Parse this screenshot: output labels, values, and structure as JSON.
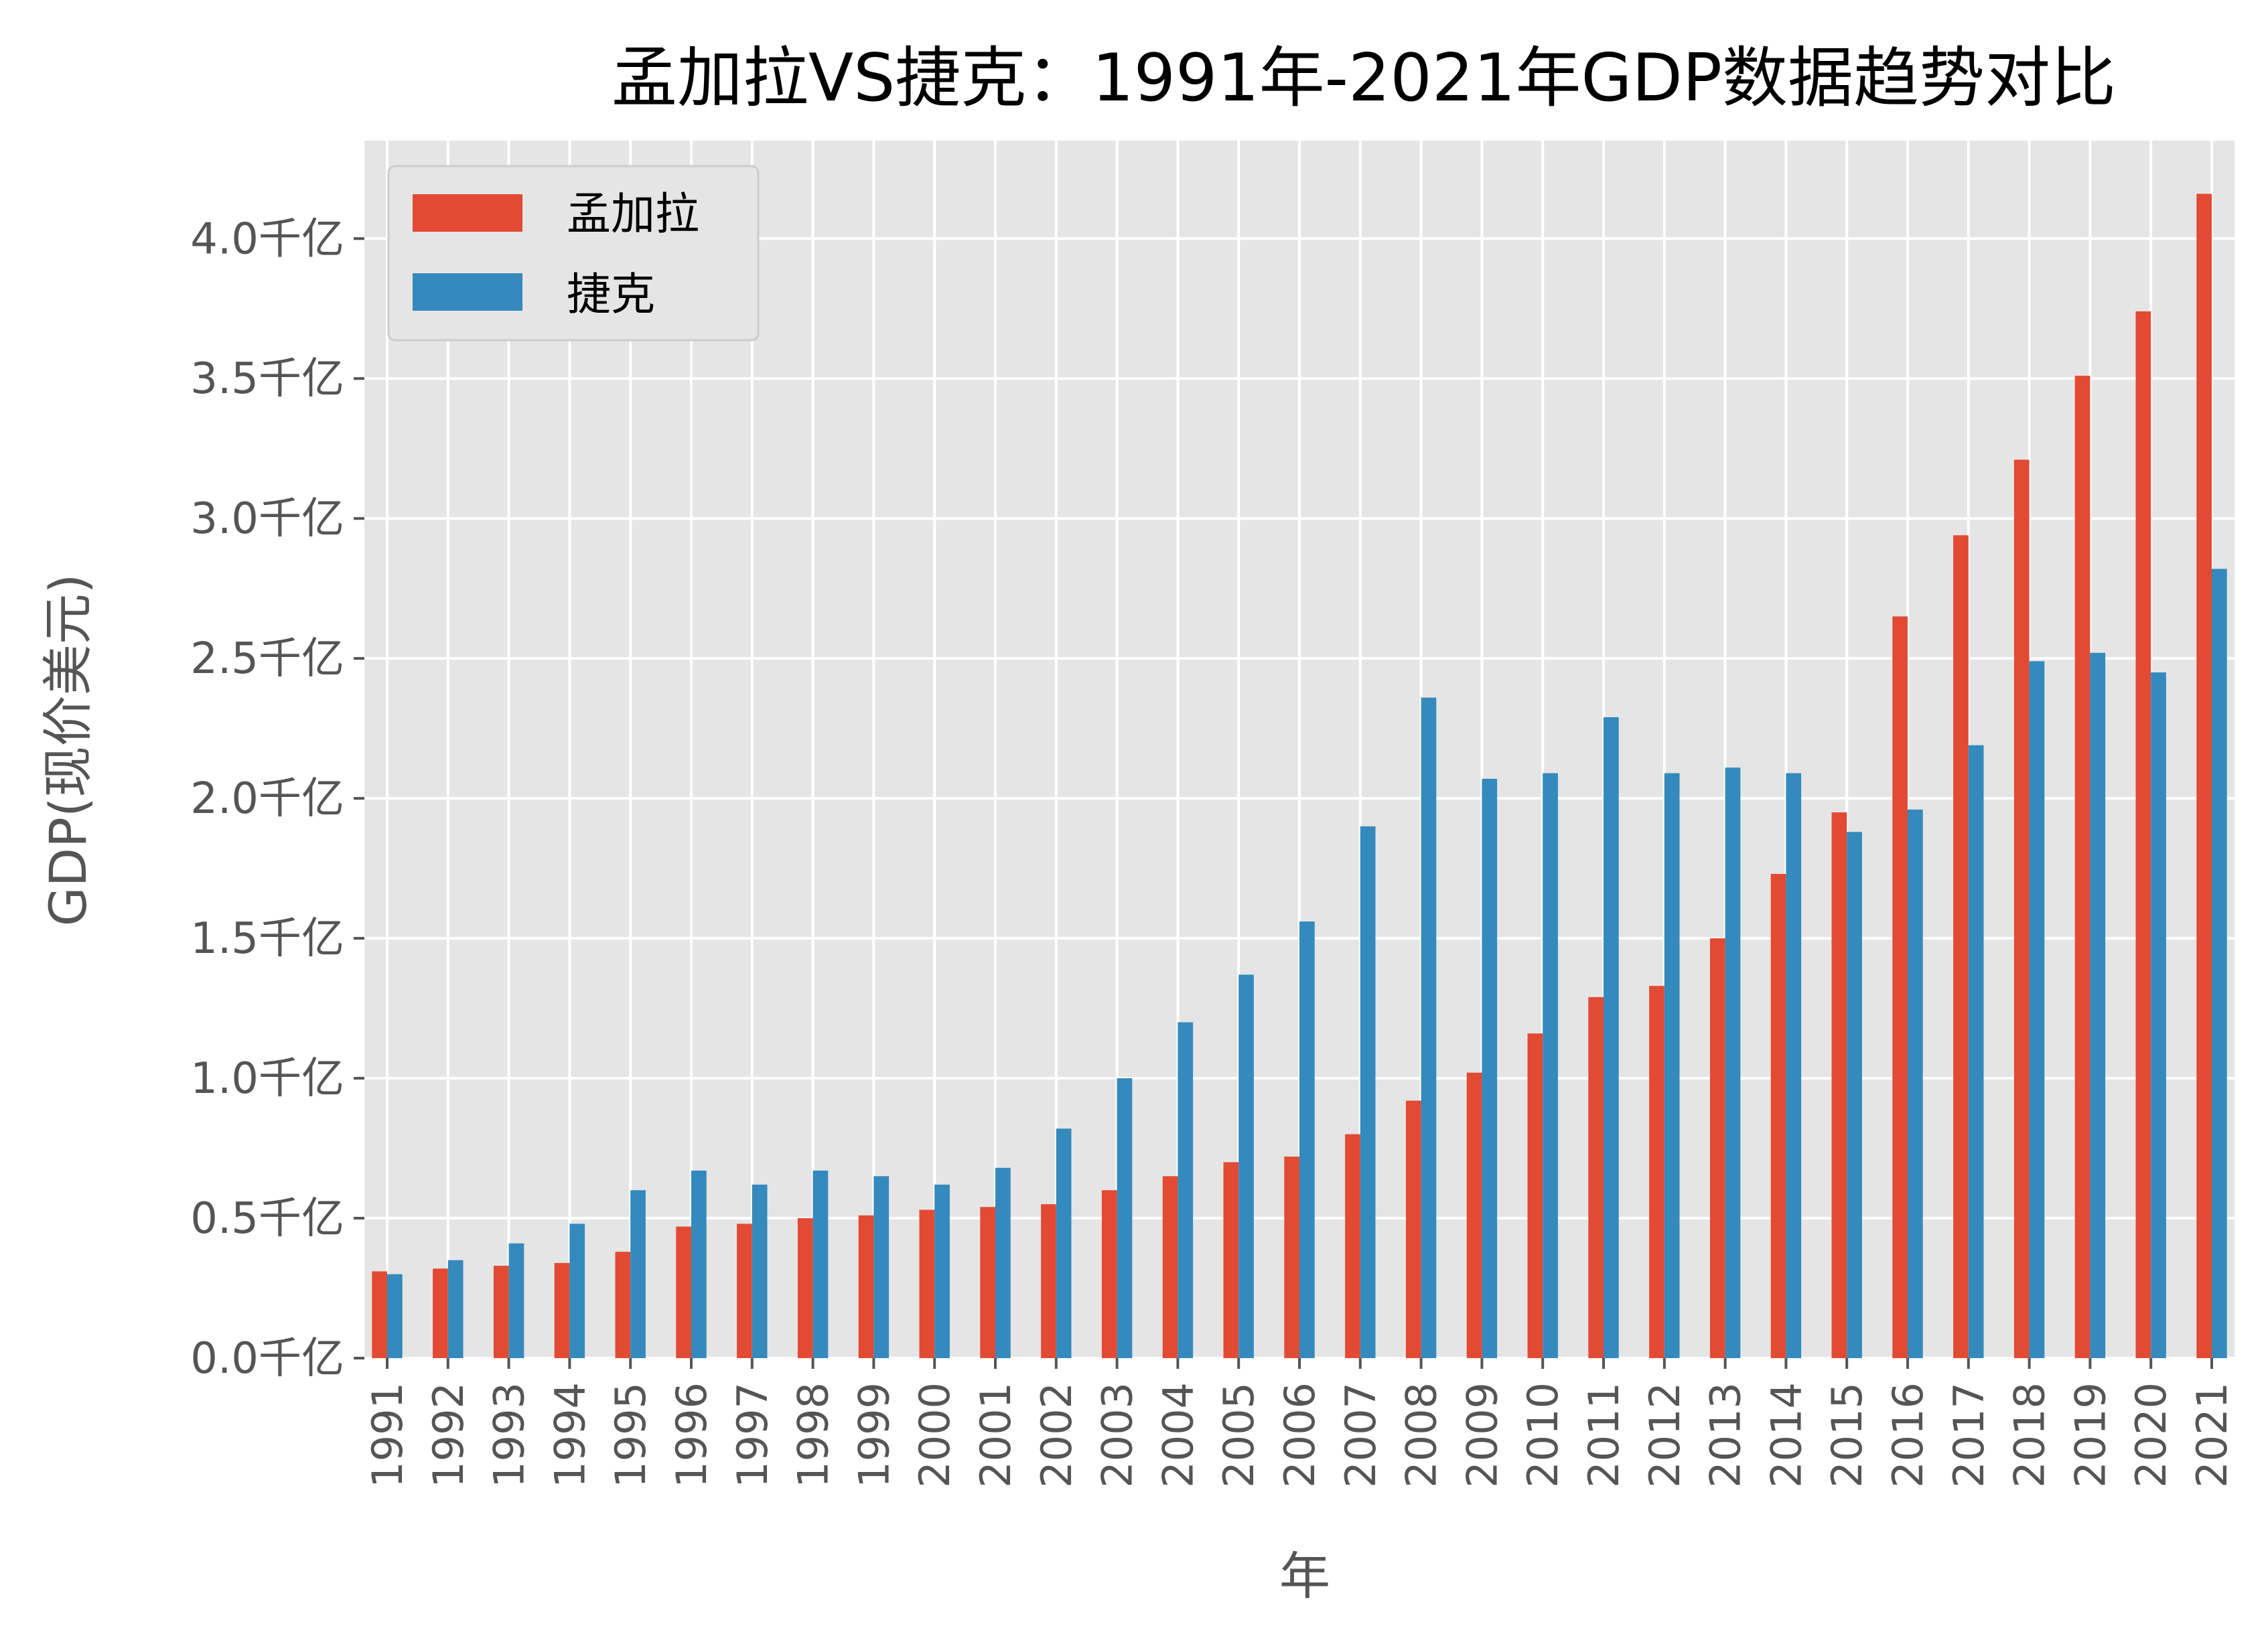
{
  "chart_data": {
    "type": "bar",
    "title": "孟加拉VS捷克：1991年-2021年GDP数据趋势对比",
    "xlabel": "年",
    "ylabel": "GDP(现价美元)",
    "categories": [
      "1991",
      "1992",
      "1993",
      "1994",
      "1995",
      "1996",
      "1997",
      "1998",
      "1999",
      "2000",
      "2001",
      "2002",
      "2003",
      "2004",
      "2005",
      "2006",
      "2007",
      "2008",
      "2009",
      "2010",
      "2011",
      "2012",
      "2013",
      "2014",
      "2015",
      "2016",
      "2017",
      "2018",
      "2019",
      "2020",
      "2021"
    ],
    "series": [
      {
        "name": "孟加拉",
        "color": "#E24A33",
        "values": [
          0.31,
          0.32,
          0.33,
          0.34,
          0.38,
          0.47,
          0.48,
          0.5,
          0.51,
          0.53,
          0.54,
          0.55,
          0.6,
          0.65,
          0.7,
          0.72,
          0.8,
          0.92,
          1.02,
          1.16,
          1.29,
          1.33,
          1.5,
          1.73,
          1.95,
          2.65,
          2.94,
          3.21,
          3.51,
          3.74,
          4.16
        ]
      },
      {
        "name": "捷克",
        "color": "#348ABD",
        "values": [
          0.3,
          0.35,
          0.41,
          0.48,
          0.6,
          0.67,
          0.62,
          0.67,
          0.65,
          0.62,
          0.68,
          0.82,
          1.0,
          1.2,
          1.37,
          1.56,
          1.9,
          2.36,
          2.07,
          2.09,
          2.29,
          2.09,
          2.11,
          2.09,
          1.88,
          1.96,
          2.19,
          2.49,
          2.52,
          2.45,
          2.82
        ]
      }
    ],
    "ylim": [
      0,
      4.35
    ],
    "yticks": [
      0.0,
      0.5,
      1.0,
      1.5,
      2.0,
      2.5,
      3.0,
      3.5,
      4.0
    ],
    "ytick_labels": [
      "0.0千亿",
      "0.5千亿",
      "1.0千亿",
      "1.5千亿",
      "2.0千亿",
      "2.5千亿",
      "3.0千亿",
      "3.5千亿",
      "4.0千亿"
    ],
    "y_unit": "千亿",
    "grid": true,
    "legend_position": "top-left",
    "style": {
      "background": "#E5E5E5",
      "grid_color": "#FFFFFF"
    }
  }
}
